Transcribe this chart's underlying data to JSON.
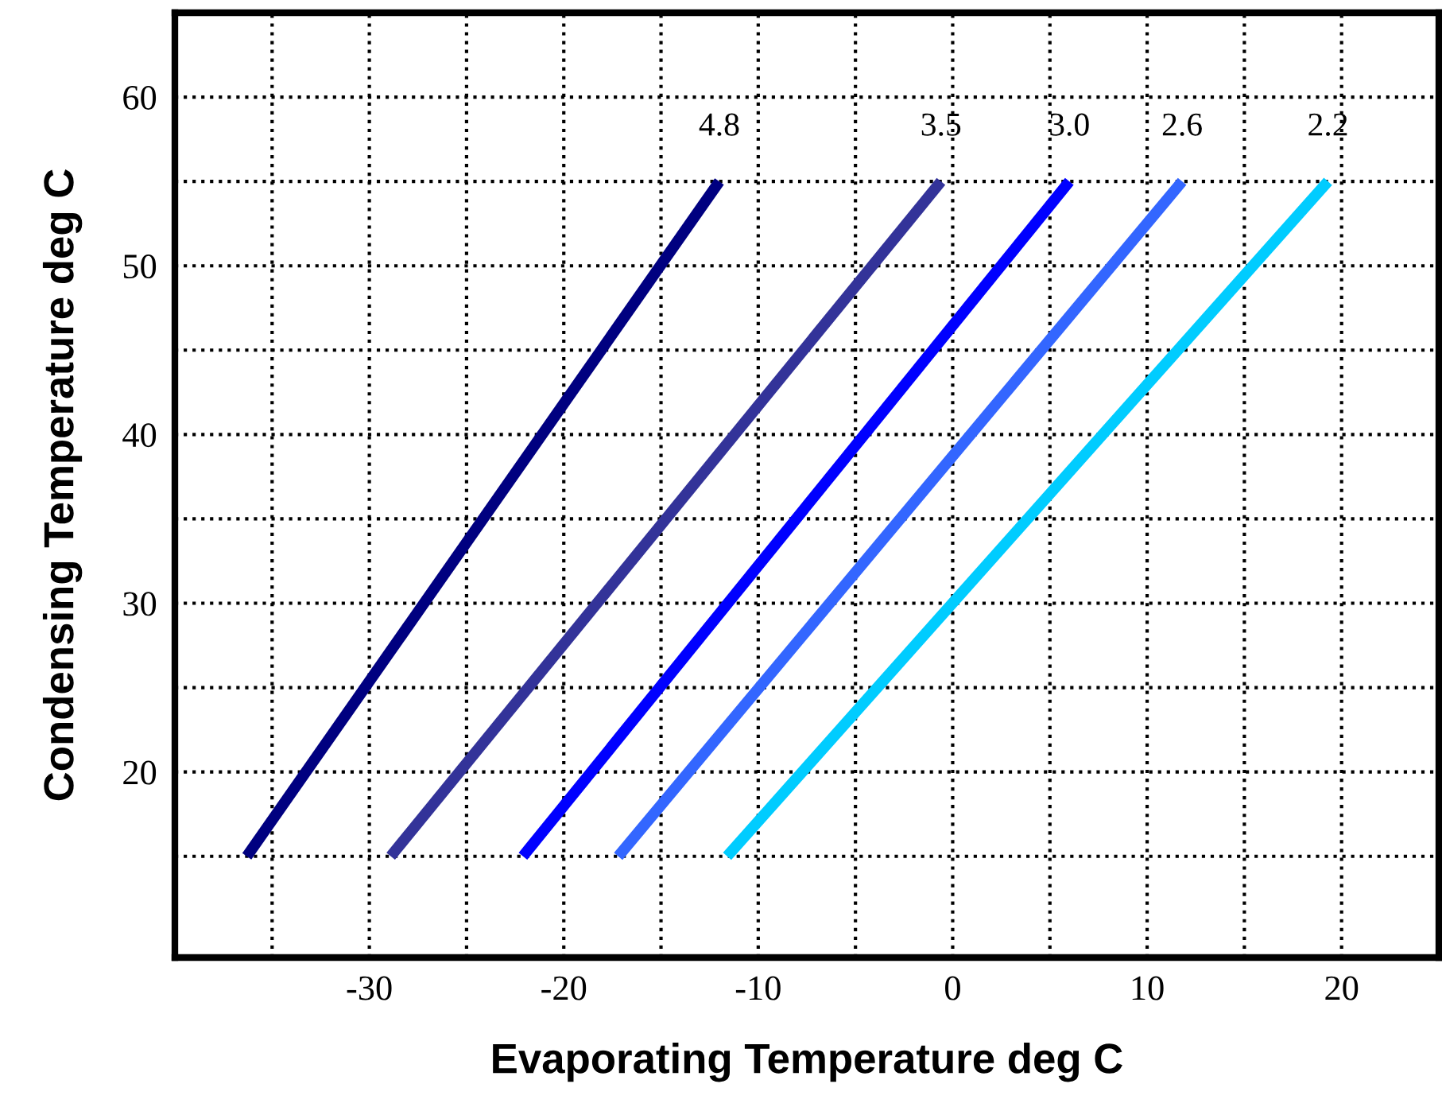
{
  "chart_data": {
    "type": "line",
    "xlabel": "Evaporating Temperature deg C",
    "ylabel": "Condensing Temperature deg C",
    "xlim": [
      -40,
      25
    ],
    "ylim": [
      9,
      65
    ],
    "xticks": [
      {
        "value": -35,
        "label": null
      },
      -30,
      {
        "value": -25,
        "label": null
      },
      -20,
      {
        "value": -15,
        "label": null
      },
      -10,
      {
        "value": -5,
        "label": null
      },
      0,
      {
        "value": 5,
        "label": null
      },
      10,
      {
        "value": 15,
        "label": null
      },
      20
    ],
    "yticks": [
      {
        "value": 15,
        "label": null
      },
      20,
      {
        "value": 25,
        "label": null
      },
      30,
      {
        "value": 35,
        "label": null
      },
      40,
      {
        "value": 45,
        "label": null
      },
      50,
      {
        "value": 55,
        "label": null
      },
      60
    ],
    "grid": true,
    "legend": false,
    "line_style": "solid",
    "marker": "none",
    "series": [
      {
        "name": "4.8",
        "color": "#000080",
        "x": [
          -36.3,
          -12.0
        ],
        "values": [
          15,
          55
        ]
      },
      {
        "name": "3.5",
        "color": "#333399",
        "x": [
          -28.9,
          -0.6
        ],
        "values": [
          15,
          55
        ]
      },
      {
        "name": "3.0",
        "color": "#0000ff",
        "x": [
          -22.1,
          6.0
        ],
        "values": [
          15,
          55
        ]
      },
      {
        "name": "2.6",
        "color": "#3366ff",
        "x": [
          -17.2,
          11.8
        ],
        "values": [
          15,
          55
        ]
      },
      {
        "name": "2.2",
        "color": "#00ccff",
        "x": [
          -11.6,
          19.3
        ],
        "values": [
          15,
          55
        ]
      }
    ]
  }
}
